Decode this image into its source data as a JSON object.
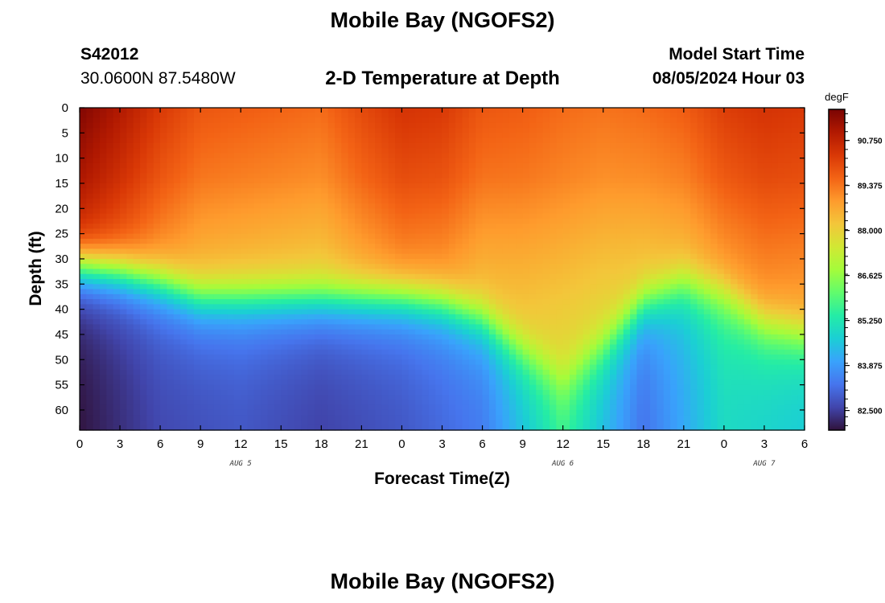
{
  "header": {
    "title": "Mobile Bay (NGOFS2)",
    "station_id": "S42012",
    "coordinates": "30.0600N  87.5480W",
    "subtitle": "2-D Temperature at Depth",
    "model_start_label": "Model Start Time",
    "model_start_value": "08/05/2024 Hour 03"
  },
  "footer": {
    "title": "Mobile Bay (NGOFS2)"
  },
  "colors": {
    "colormap": [
      "#30123b",
      "#4145ab",
      "#4675ed",
      "#39a2fc",
      "#1bcfd4",
      "#24eca6",
      "#61fc6c",
      "#a4fc3b",
      "#d1e834",
      "#f3c63a",
      "#fe9b2d",
      "#f36315",
      "#d93806",
      "#b11901",
      "#7a0403"
    ]
  },
  "chart_data": {
    "type": "heatmap",
    "title": "2-D Temperature at Depth",
    "xlabel": "Forecast Time(Z)",
    "ylabel": "Depth (ft)",
    "colorbar_units": "degF",
    "colorbar_ticks": [
      82.5,
      83.875,
      85.25,
      86.625,
      88.0,
      89.375,
      90.75
    ],
    "colorbar_tick_labels": [
      "82.500",
      "83.875",
      "85.250",
      "86.625",
      "88.000",
      "89.375",
      "90.750"
    ],
    "value_range": [
      81.9,
      91.7
    ],
    "x_range_hours": [
      0,
      54
    ],
    "x_tick_labels": [
      "0",
      "3",
      "6",
      "9",
      "12",
      "15",
      "18",
      "21",
      "0",
      "3",
      "6",
      "9",
      "12",
      "15",
      "18",
      "21",
      "0",
      "3",
      "6"
    ],
    "date_labels": [
      {
        "text": "AUG 5",
        "hour": 12
      },
      {
        "text": "AUG 6",
        "hour": 36
      },
      {
        "text": "AUG 7",
        "hour": 51
      }
    ],
    "y_range_ft": [
      0,
      64
    ],
    "y_ticks": [
      0,
      5,
      10,
      15,
      20,
      25,
      30,
      35,
      40,
      45,
      50,
      55,
      60
    ],
    "y_tick_labels": [
      "0",
      "5",
      "10",
      "15",
      "20",
      "25",
      "30",
      "35",
      "40",
      "45",
      "50",
      "55",
      "60"
    ],
    "thermocline_depth_ft": {
      "hour": [
        0,
        3,
        6,
        9,
        12,
        15,
        18,
        21,
        24,
        27,
        30,
        33,
        36,
        39,
        42,
        45,
        48,
        51,
        54
      ],
      "depth": [
        31,
        32,
        34,
        37,
        37,
        37,
        37,
        37,
        37,
        38,
        41,
        47,
        52,
        46,
        38,
        34,
        36,
        42,
        44
      ]
    },
    "surface_temperature_f": {
      "hour": [
        0,
        3,
        6,
        9,
        12,
        15,
        18,
        21,
        24,
        27,
        30,
        33,
        36,
        39,
        42,
        45,
        48,
        51,
        54
      ],
      "value": [
        91.6,
        91.0,
        90.3,
        89.8,
        89.7,
        89.6,
        89.5,
        90.0,
        90.4,
        90.3,
        89.8,
        89.7,
        89.5,
        89.4,
        89.5,
        89.7,
        90.2,
        90.4,
        90.3
      ]
    },
    "bottom_temperature_f": {
      "hour": [
        0,
        6,
        12,
        18,
        24,
        30,
        36,
        42,
        48,
        54
      ],
      "value": [
        81.9,
        82.6,
        82.8,
        82.5,
        82.8,
        83.3,
        85.3,
        83.2,
        84.9,
        84.5
      ]
    }
  }
}
